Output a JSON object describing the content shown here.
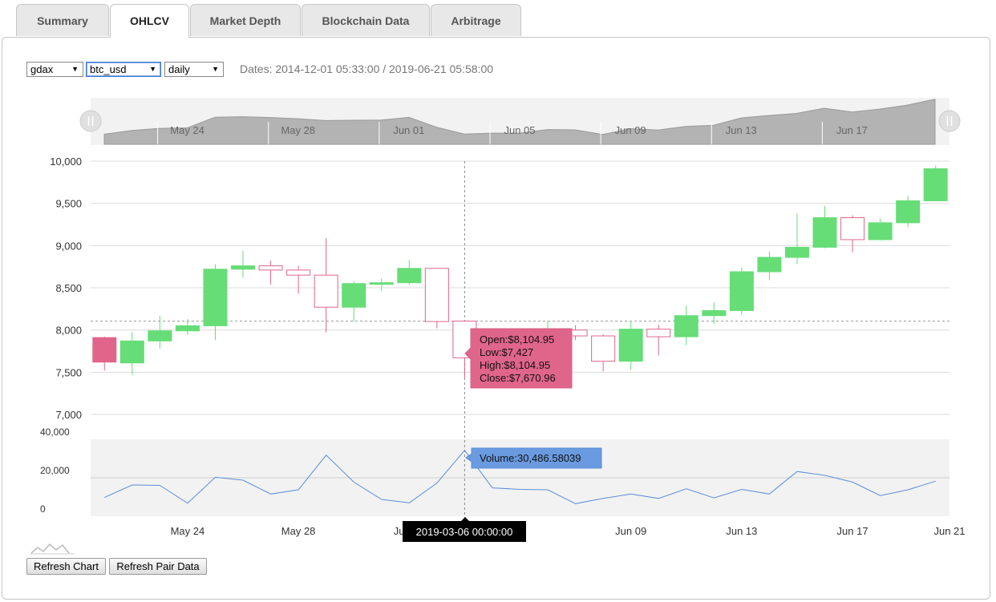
{
  "tabs": [
    {
      "label": "Summary"
    },
    {
      "label": "OHLCV"
    },
    {
      "label": "Market Depth"
    },
    {
      "label": "Blockchain Data"
    },
    {
      "label": "Arbitrage"
    }
  ],
  "controls": {
    "exchange": "gdax",
    "pair": "btc_usd",
    "interval": "daily",
    "dates_text": "Dates: 2014-12-01 05:33:00 / 2019-06-21 05:58:00"
  },
  "buttons": {
    "refresh_chart": "Refresh Chart",
    "refresh_pair": "Refresh Pair Data"
  },
  "colors": {
    "up": "#66dd77",
    "down": "#e0658a",
    "volume": "#5b8ed8",
    "tooltip_volume": "#6a9be0",
    "tooltip_date": "#000000"
  },
  "chart_data": {
    "type": "candlestick",
    "price_ticks": [
      "10,000",
      "9,500",
      "9,000",
      "8,500",
      "8,000",
      "7,500",
      "7,000"
    ],
    "volume_ticks": [
      "40,000",
      "20,000",
      "0"
    ],
    "date_ticks": [
      "May 24",
      "May 28",
      "Jun 01",
      "Jun 09",
      "Jun 13",
      "Jun 17",
      "Jun 21"
    ],
    "navigator_ticks": [
      "May 24",
      "May 28",
      "Jun 01",
      "Jun 05",
      "Jun 09",
      "Jun 13",
      "Jun 17"
    ],
    "ylim": [
      7000,
      10000
    ],
    "volume_ylim": [
      0,
      40000
    ],
    "candles": [
      {
        "date": "May 21",
        "open": 7910,
        "high": 7920,
        "low": 7520,
        "close": 7620
      },
      {
        "date": "May 22",
        "open": 7610,
        "high": 7980,
        "low": 7470,
        "close": 7870
      },
      {
        "date": "May 23",
        "open": 7870,
        "high": 8170,
        "low": 7780,
        "close": 7990
      },
      {
        "date": "May 24",
        "open": 7990,
        "high": 8130,
        "low": 7940,
        "close": 8050
      },
      {
        "date": "May 25",
        "open": 8050,
        "high": 8780,
        "low": 7880,
        "close": 8720
      },
      {
        "date": "May 26",
        "open": 8720,
        "high": 8940,
        "low": 8620,
        "close": 8760
      },
      {
        "date": "May 27",
        "open": 8760,
        "high": 8820,
        "low": 8540,
        "close": 8710
      },
      {
        "date": "May 28",
        "open": 8710,
        "high": 8760,
        "low": 8430,
        "close": 8650
      },
      {
        "date": "May 29",
        "open": 8650,
        "high": 9090,
        "low": 7970,
        "close": 8270
      },
      {
        "date": "May 30",
        "open": 8270,
        "high": 8580,
        "low": 8100,
        "close": 8550
      },
      {
        "date": "May 31",
        "open": 8550,
        "high": 8610,
        "low": 8460,
        "close": 8560
      },
      {
        "date": "Jun 01",
        "open": 8560,
        "high": 8830,
        "low": 8540,
        "close": 8730
      },
      {
        "date": "Jun 02",
        "open": 8730,
        "high": 8730,
        "low": 8020,
        "close": 8100
      },
      {
        "date": "Jun 03",
        "open": 8104.95,
        "high": 8104.95,
        "low": 7427,
        "close": 7670.96
      },
      {
        "date": "Jun 04",
        "open": 7670,
        "high": 7760,
        "low": 7450,
        "close": 7700
      },
      {
        "date": "Jun 05",
        "open": 7700,
        "high": 7900,
        "low": 7600,
        "close": 7850
      },
      {
        "date": "Jun 06",
        "open": 7850,
        "high": 8110,
        "low": 7700,
        "close": 8000
      },
      {
        "date": "Jun 07",
        "open": 8000,
        "high": 8060,
        "low": 7880,
        "close": 7930
      },
      {
        "date": "Jun 08",
        "open": 7930,
        "high": 7950,
        "low": 7510,
        "close": 7630
      },
      {
        "date": "Jun 09",
        "open": 7630,
        "high": 8100,
        "low": 7530,
        "close": 8010
      },
      {
        "date": "Jun 10",
        "open": 8010,
        "high": 8060,
        "low": 7700,
        "close": 7920
      },
      {
        "date": "Jun 11",
        "open": 7920,
        "high": 8290,
        "low": 7820,
        "close": 8170
      },
      {
        "date": "Jun 12",
        "open": 8170,
        "high": 8330,
        "low": 8070,
        "close": 8230
      },
      {
        "date": "Jun 13",
        "open": 8230,
        "high": 8740,
        "low": 8180,
        "close": 8690
      },
      {
        "date": "Jun 14",
        "open": 8690,
        "high": 8930,
        "low": 8590,
        "close": 8860
      },
      {
        "date": "Jun 15",
        "open": 8860,
        "high": 9380,
        "low": 8780,
        "close": 8980
      },
      {
        "date": "Jun 16",
        "open": 8980,
        "high": 9470,
        "low": 8970,
        "close": 9330
      },
      {
        "date": "Jun 17",
        "open": 9330,
        "high": 9360,
        "low": 8920,
        "close": 9070
      },
      {
        "date": "Jun 18",
        "open": 9070,
        "high": 9320,
        "low": 9060,
        "close": 9270
      },
      {
        "date": "Jun 19",
        "open": 9270,
        "high": 9590,
        "low": 9220,
        "close": 9530
      },
      {
        "date": "Jun 20",
        "open": 9530,
        "high": 9950,
        "low": 9530,
        "close": 9910
      }
    ],
    "volume": [
      6000,
      12500,
      12300,
      3000,
      16500,
      15000,
      7800,
      10000,
      28000,
      14000,
      5000,
      3200,
      13500,
      30486.58039,
      11000,
      10200,
      10000,
      2800,
      5500,
      7800,
      5500,
      10500,
      5800,
      10200,
      7800,
      19500,
      17500,
      14000,
      7000,
      10000,
      14500
    ],
    "navigator_values": [
      7650,
      7890,
      8030,
      8060,
      8750,
      8780,
      8730,
      8650,
      8530,
      8550,
      8560,
      8740,
      8100,
      7660,
      7720,
      7720,
      7950,
      7930,
      7630,
      8010,
      7920,
      8160,
      8220,
      8700,
      8860,
      8990,
      9330,
      9080,
      9270,
      9530,
      9910
    ],
    "tooltip": {
      "open": "Open:$8,104.95",
      "low": "Low:$7,427",
      "high": "High:$8,104.95",
      "close": "Close:$7,670.96",
      "volume": "Volume:30,486.58039",
      "date": "2019-03-06 00:00:00"
    },
    "crosshair_price": 8105,
    "hovered_index": 13
  }
}
